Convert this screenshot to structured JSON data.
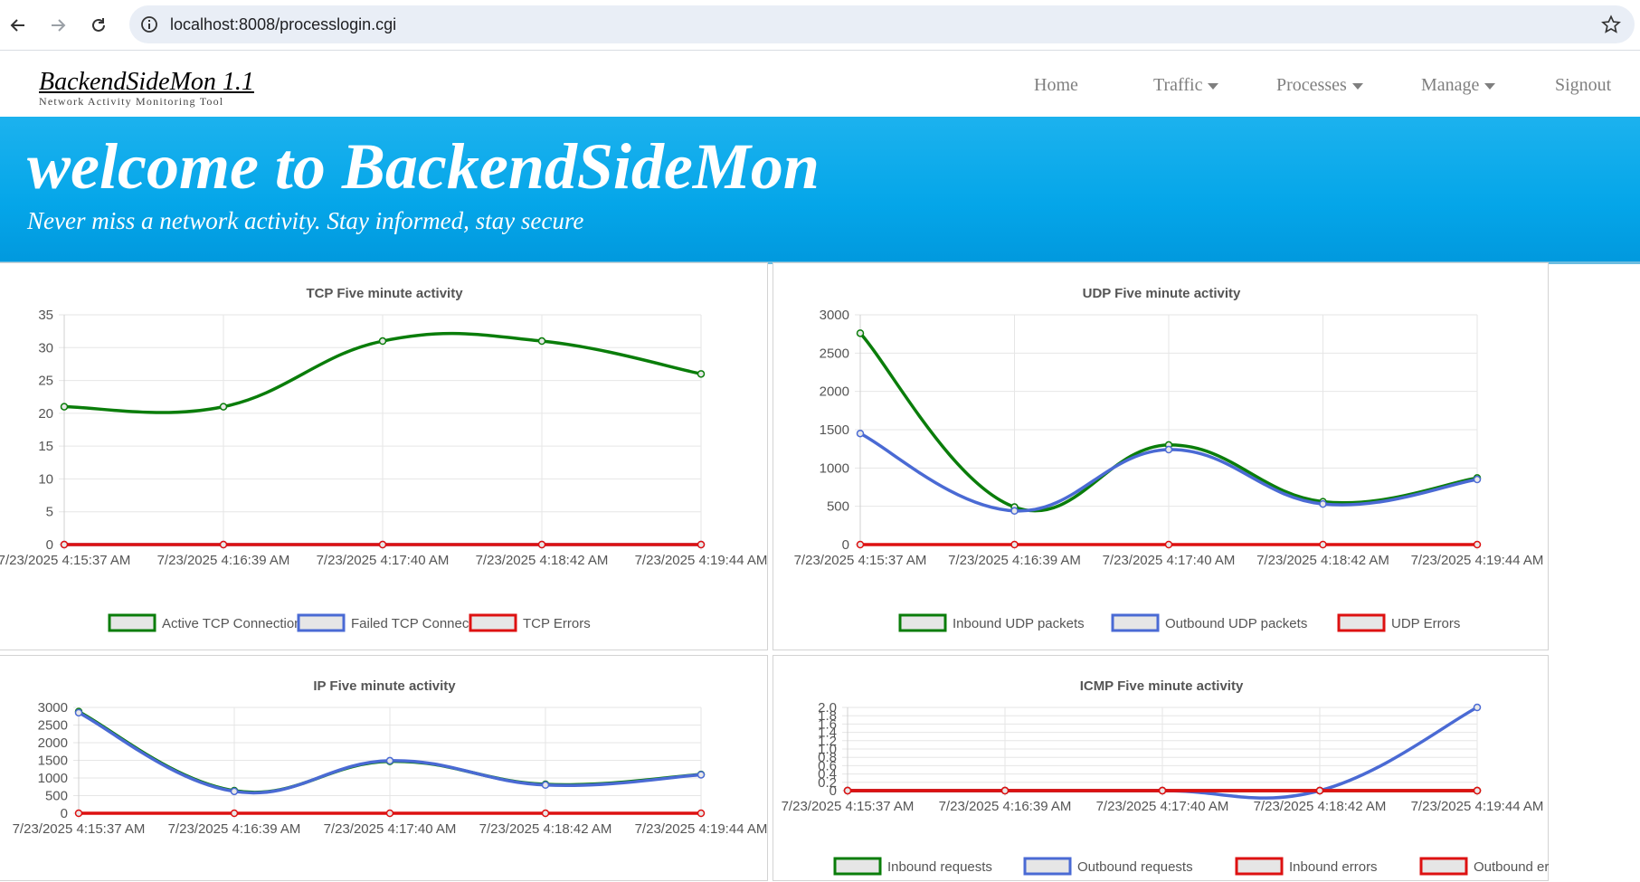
{
  "browser": {
    "url": "localhost:8008/processlogin.cgi",
    "icons": [
      "back-arrow-icon",
      "forward-arrow-icon",
      "reload-icon",
      "site-info-icon",
      "bookmark-star-icon"
    ]
  },
  "app": {
    "brand_title": "BackendSideMon 1.1",
    "brand_subtitle": "Network Activity Monitoring Tool",
    "menu": {
      "home": "Home",
      "traffic": "Traffic",
      "processes": "Processes",
      "manage": "Manage",
      "signout": "Signout"
    }
  },
  "hero": {
    "title": "welcome to BackendSideMon",
    "subtitle": "Never miss a network activity. Stay informed, stay secure"
  },
  "colors": {
    "green": "#0a7d0a",
    "blue": "#4a6ad4",
    "red": "#dd1111",
    "hero": "#05a6e9"
  },
  "chart_data": [
    {
      "type": "line",
      "title": "TCP Five minute activity",
      "categories": [
        "7/23/2025 4:15:37 AM",
        "7/23/2025 4:16:39 AM",
        "7/23/2025 4:17:40 AM",
        "7/23/2025 4:18:42 AM",
        "7/23/2025 4:19:44 AM"
      ],
      "yticks": [
        0,
        5,
        10,
        15,
        20,
        25,
        30,
        35
      ],
      "ylim": [
        0,
        35
      ],
      "series": [
        {
          "name": "Active TCP Connections",
          "color": "#0a7d0a",
          "values": [
            21,
            21,
            31,
            31,
            26
          ]
        },
        {
          "name": "Failed TCP Connections",
          "color": "#4a6ad4",
          "values": [
            0,
            0,
            0,
            0,
            0
          ]
        },
        {
          "name": "TCP Errors",
          "color": "#dd1111",
          "values": [
            0,
            0,
            0,
            0,
            0
          ]
        }
      ]
    },
    {
      "type": "line",
      "title": "UDP Five minute activity",
      "categories": [
        "7/23/2025 4:15:37 AM",
        "7/23/2025 4:16:39 AM",
        "7/23/2025 4:17:40 AM",
        "7/23/2025 4:18:42 AM",
        "7/23/2025 4:19:44 AM"
      ],
      "yticks": [
        0,
        500,
        1000,
        1500,
        2000,
        2500,
        3000
      ],
      "ylim": [
        0,
        3000
      ],
      "series": [
        {
          "name": "Inbound UDP packets",
          "color": "#0a7d0a",
          "values": [
            2760,
            490,
            1300,
            560,
            870
          ]
        },
        {
          "name": "Outbound UDP packets",
          "color": "#4a6ad4",
          "values": [
            1450,
            440,
            1240,
            530,
            850
          ]
        },
        {
          "name": "UDP Errors",
          "color": "#dd1111",
          "values": [
            0,
            0,
            0,
            0,
            0
          ]
        }
      ]
    },
    {
      "type": "line",
      "title": "IP Five minute activity",
      "categories": [
        "7/23/2025 4:15:37 AM",
        "7/23/2025 4:16:39 AM",
        "7/23/2025 4:17:40 AM",
        "7/23/2025 4:18:42 AM",
        "7/23/2025 4:19:44 AM"
      ],
      "yticks": [
        0,
        500,
        1000,
        1500,
        2000,
        2500,
        3000
      ],
      "ylim": [
        0,
        3000
      ],
      "series": [
        {
          "name": "Inbound IP packets",
          "color": "#0a7d0a",
          "values": [
            2880,
            640,
            1470,
            820,
            1100
          ]
        },
        {
          "name": "Outbound IP packets",
          "color": "#4a6ad4",
          "values": [
            2850,
            620,
            1490,
            800,
            1090
          ]
        },
        {
          "name": "IP Errors",
          "color": "#dd1111",
          "values": [
            0,
            0,
            0,
            0,
            0
          ]
        }
      ]
    },
    {
      "type": "line",
      "title": "ICMP Five minute activity",
      "categories": [
        "7/23/2025 4:15:37 AM",
        "7/23/2025 4:16:39 AM",
        "7/23/2025 4:17:40 AM",
        "7/23/2025 4:18:42 AM",
        "7/23/2025 4:19:44 AM"
      ],
      "yticks": [
        0,
        0.2,
        0.4,
        0.6,
        0.8,
        1.0,
        1.2,
        1.4,
        1.6,
        1.8,
        2.0
      ],
      "ytick_labels": [
        "0",
        "0.2",
        "0.4",
        "0.6",
        "0.8",
        "1.0",
        "1.2",
        "1.4",
        "1.6",
        "1.8",
        "2.0"
      ],
      "ylim": [
        0,
        2
      ],
      "series": [
        {
          "name": "Inbound requests",
          "color": "#0a7d0a",
          "values": [
            0,
            0,
            0,
            0,
            0
          ]
        },
        {
          "name": "Outbound requests",
          "color": "#4a6ad4",
          "values": [
            0,
            0,
            0,
            0,
            2
          ]
        },
        {
          "name": "Inbound errors",
          "color": "#dd1111",
          "values": [
            0,
            0,
            0,
            0,
            0
          ]
        },
        {
          "name": "Outbound errors",
          "color": "#dd1111",
          "values": [
            0,
            0,
            0,
            0,
            0
          ]
        }
      ]
    }
  ]
}
